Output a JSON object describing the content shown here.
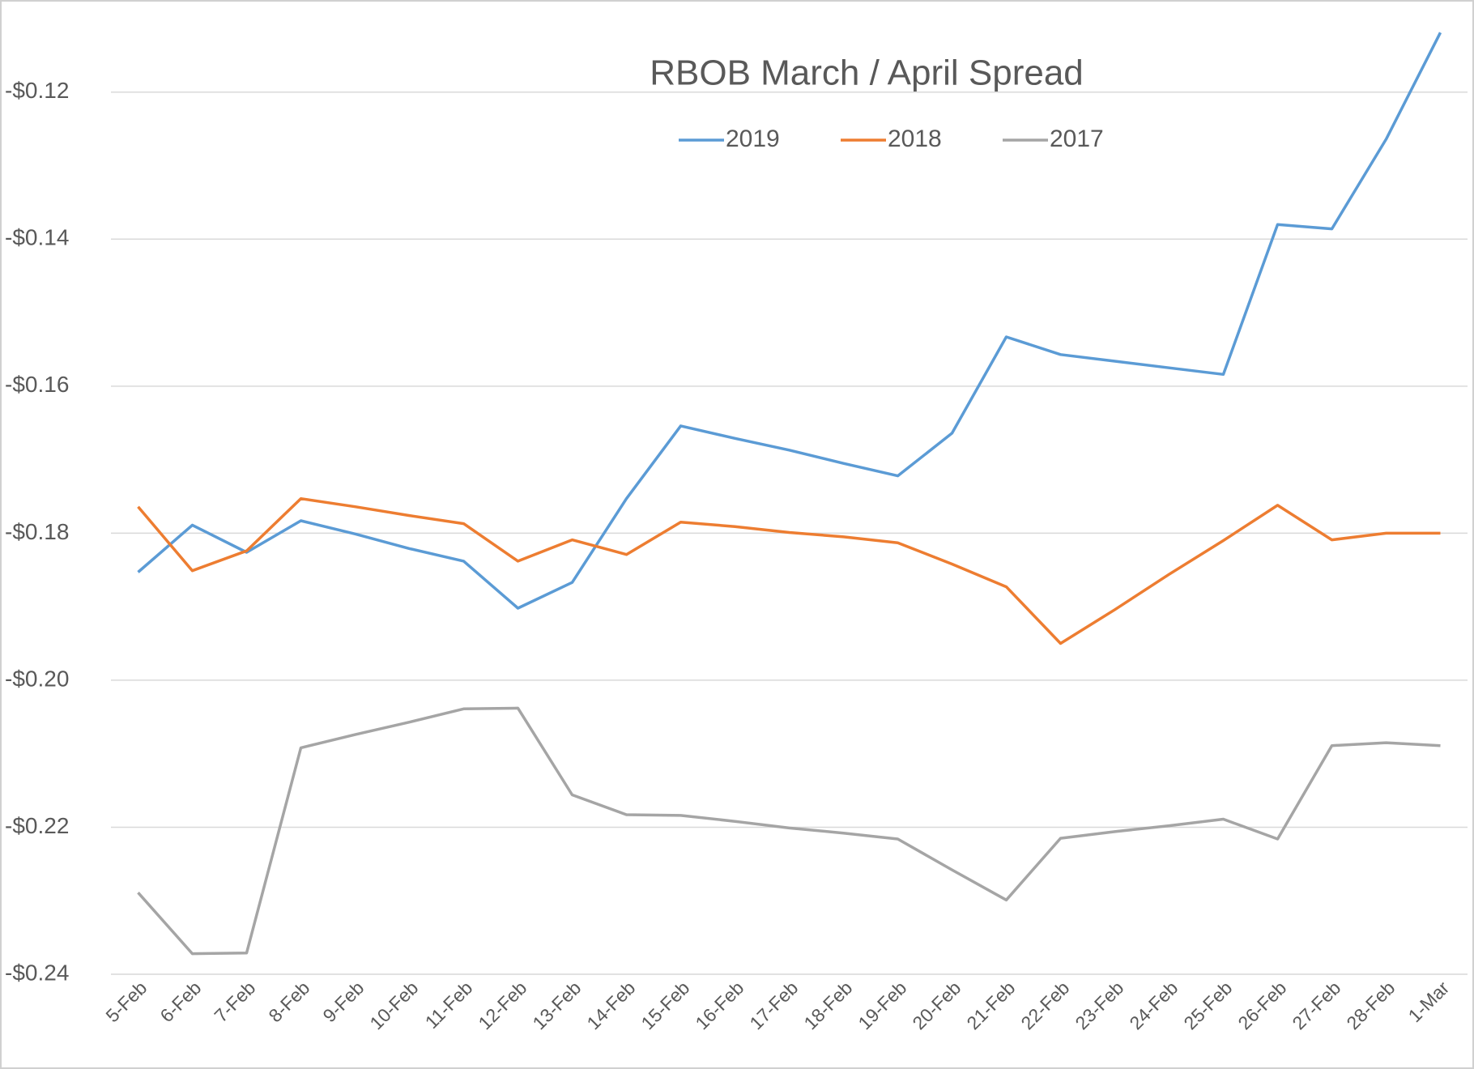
{
  "chart_data": {
    "type": "line",
    "title": "RBOB March / April Spread",
    "categories": [
      "5-Feb",
      "6-Feb",
      "7-Feb",
      "8-Feb",
      "9-Feb",
      "10-Feb",
      "11-Feb",
      "12-Feb",
      "13-Feb",
      "14-Feb",
      "15-Feb",
      "16-Feb",
      "17-Feb",
      "18-Feb",
      "19-Feb",
      "20-Feb",
      "21-Feb",
      "22-Feb",
      "23-Feb",
      "24-Feb",
      "25-Feb",
      "26-Feb",
      "27-Feb",
      "28-Feb",
      "1-Mar"
    ],
    "series": [
      {
        "name": "2019",
        "color": "#5b9bd5",
        "values": [
          -0.1853,
          -0.1789,
          -0.1826,
          -0.1783,
          -0.1801,
          -0.1821,
          -0.1838,
          -0.1902,
          -0.1867,
          -0.1753,
          -0.1654,
          -0.1671,
          -0.1687,
          -0.1705,
          -0.1722,
          -0.1664,
          -0.1533,
          -0.1557,
          -0.1566,
          -0.1575,
          -0.1584,
          -0.138,
          -0.1386,
          -0.1264,
          -0.1119
        ]
      },
      {
        "name": "2018",
        "color": "#ed7d31",
        "values": [
          -0.1764,
          -0.1851,
          -0.1824,
          -0.1753,
          -0.1764,
          -0.1776,
          -0.1787,
          -0.1838,
          -0.1809,
          -0.1829,
          -0.1785,
          -0.1791,
          -0.1799,
          -0.1805,
          -0.1813,
          -0.1842,
          -0.1873,
          -0.195,
          -0.1904,
          -0.1856,
          -0.181,
          -0.1762,
          -0.1809,
          -0.18,
          -0.18
        ]
      },
      {
        "name": "2017",
        "color": "#a5a5a5",
        "values": [
          -0.2289,
          -0.2372,
          -0.2371,
          -0.2092,
          -0.2074,
          -0.2057,
          -0.2039,
          -0.2038,
          -0.2156,
          -0.2183,
          -0.2184,
          -0.2192,
          -0.2201,
          -0.2208,
          -0.2216,
          -0.2258,
          -0.2299,
          -0.2215,
          -0.2206,
          -0.2198,
          -0.2189,
          -0.2216,
          -0.2089,
          -0.2085,
          -0.2089
        ]
      }
    ],
    "ylim": [
      -0.24,
      -0.11
    ],
    "yticks": [
      {
        "value": -0.24,
        "label": "-$0.24"
      },
      {
        "value": -0.22,
        "label": "-$0.22"
      },
      {
        "value": -0.2,
        "label": "-$0.20"
      },
      {
        "value": -0.18,
        "label": "-$0.18"
      },
      {
        "value": -0.16,
        "label": "-$0.16"
      },
      {
        "value": -0.14,
        "label": "-$0.14"
      },
      {
        "value": -0.12,
        "label": "-$0.12"
      }
    ],
    "grid": true,
    "legend": "top"
  }
}
